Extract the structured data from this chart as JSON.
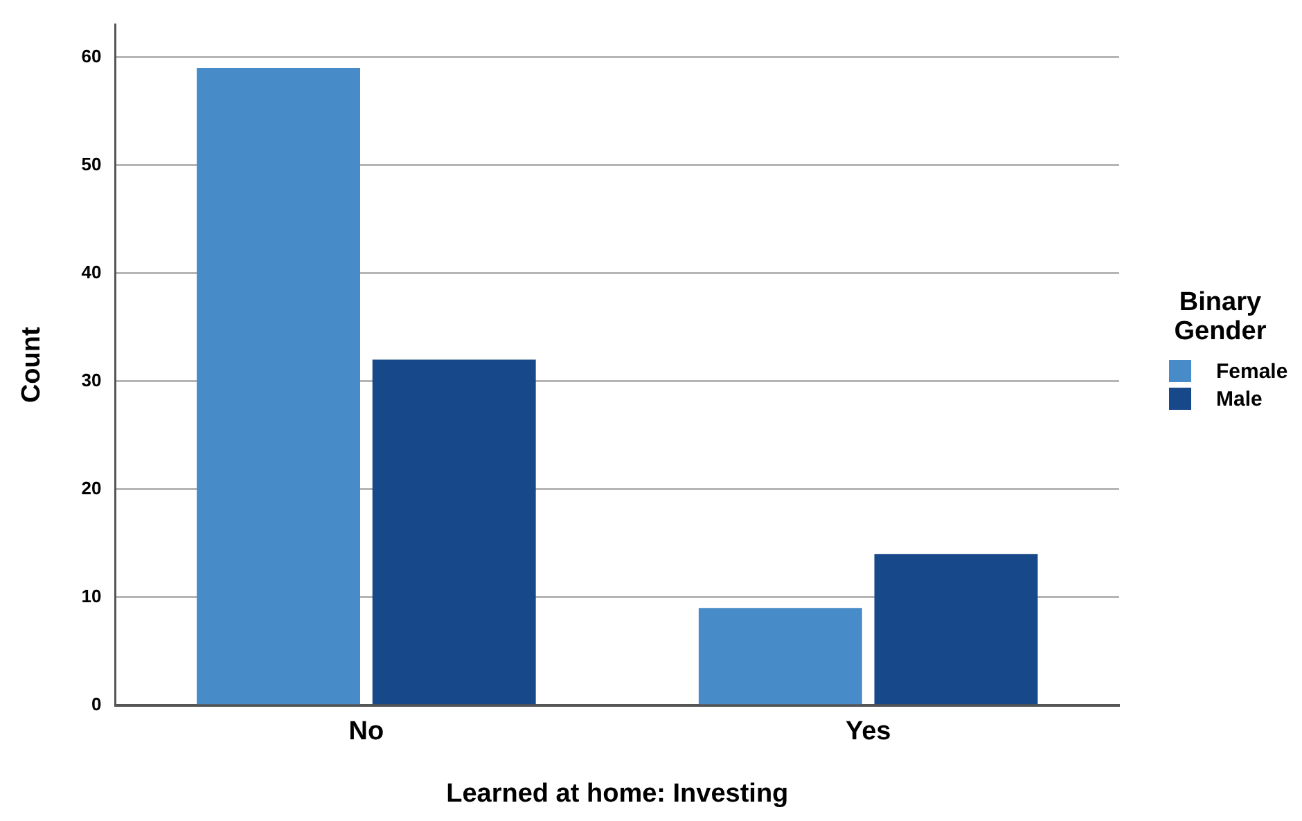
{
  "chart_data": {
    "type": "bar",
    "xlabel": "Learned at home: Investing",
    "ylabel": "Count",
    "legend_title": "Binary Gender",
    "categories": [
      "No",
      "Yes"
    ],
    "series": [
      {
        "name": "Female",
        "color": "#478bc9",
        "values": [
          59,
          9
        ]
      },
      {
        "name": "Male",
        "color": "#174889",
        "values": [
          32,
          14
        ]
      }
    ],
    "ylim": [
      0,
      63
    ],
    "yticks": [
      0,
      10,
      20,
      30,
      40,
      50,
      60
    ],
    "grid": "y",
    "legend": "right"
  }
}
